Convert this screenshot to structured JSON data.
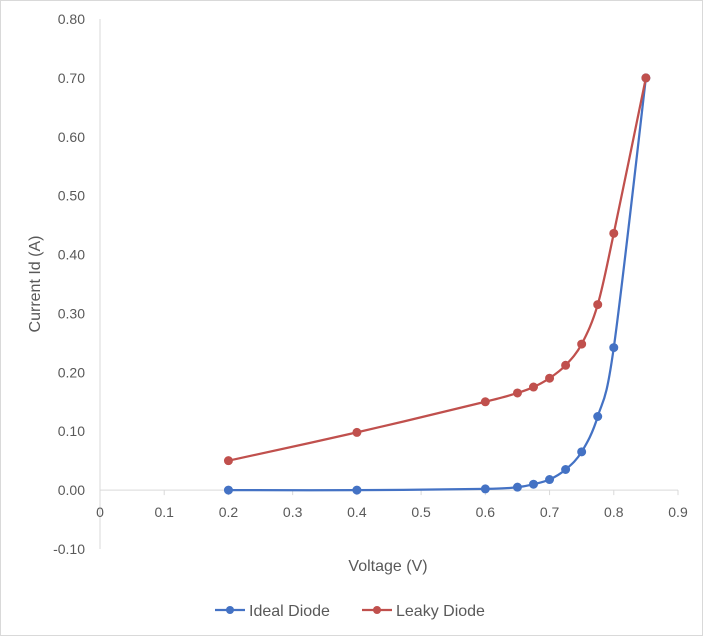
{
  "chart_data": {
    "type": "scatter",
    "title": "",
    "xlabel": "Voltage (V)",
    "ylabel": "Current Id (A)",
    "xlim": [
      0,
      0.9
    ],
    "ylim": [
      -0.1,
      0.8
    ],
    "x_ticks": [
      "0",
      "0.1",
      "0.2",
      "0.3",
      "0.4",
      "0.5",
      "0.6",
      "0.7",
      "0.8",
      "0.9"
    ],
    "x_tick_values": [
      0,
      0.1,
      0.2,
      0.3,
      0.4,
      0.5,
      0.6,
      0.7,
      0.8,
      0.9
    ],
    "y_ticks": [
      "-0.10",
      "0.00",
      "0.10",
      "0.20",
      "0.30",
      "0.40",
      "0.50",
      "0.60",
      "0.70",
      "0.80"
    ],
    "y_tick_values": [
      -0.1,
      0,
      0.1,
      0.2,
      0.3,
      0.4,
      0.5,
      0.6,
      0.7,
      0.8
    ],
    "grid": false,
    "smooth_lines": true,
    "markers": true,
    "legend_position": "bottom",
    "series": [
      {
        "name": "Ideal Diode",
        "color": "#4472c4",
        "x": [
          0.2,
          0.4,
          0.6,
          0.65,
          0.675,
          0.7,
          0.725,
          0.75,
          0.775,
          0.8,
          0.85
        ],
        "y": [
          0.0,
          0.0,
          0.002,
          0.005,
          0.01,
          0.018,
          0.035,
          0.065,
          0.125,
          0.242,
          0.7
        ]
      },
      {
        "name": "Leaky Diode",
        "color": "#c0504d",
        "x": [
          0.2,
          0.4,
          0.6,
          0.65,
          0.675,
          0.7,
          0.725,
          0.75,
          0.775,
          0.8,
          0.85
        ],
        "y": [
          0.05,
          0.098,
          0.15,
          0.165,
          0.175,
          0.19,
          0.212,
          0.248,
          0.315,
          0.436,
          0.7
        ]
      }
    ]
  }
}
